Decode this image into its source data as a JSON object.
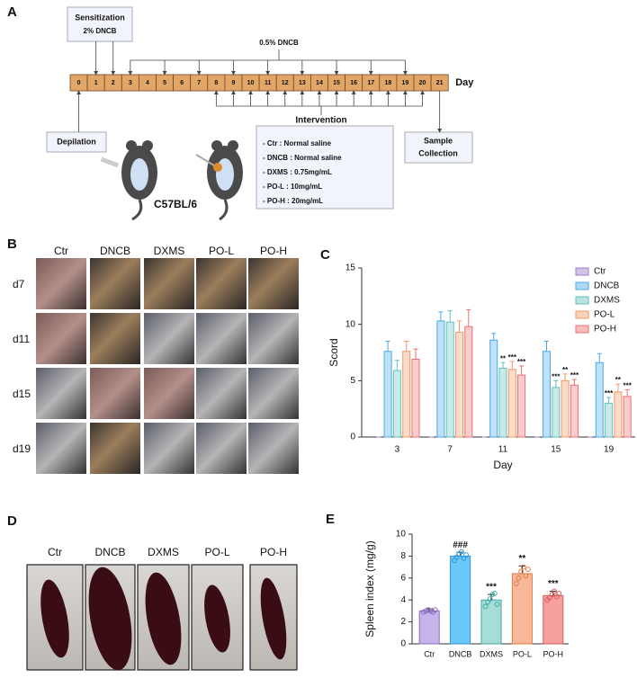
{
  "panel_labels": [
    "A",
    "B",
    "C",
    "D",
    "E"
  ],
  "timeline": {
    "sensitization": "Sensitization",
    "sensitization_dose": "2% DNCB",
    "challenge_dose": "0.5% DNCB",
    "days": [
      0,
      1,
      2,
      3,
      4,
      5,
      6,
      7,
      8,
      9,
      10,
      11,
      12,
      13,
      14,
      15,
      16,
      17,
      18,
      19,
      20,
      21
    ],
    "day_label": "Day",
    "depilation": "Depilation",
    "sample_collection": [
      "Sample",
      "Collection"
    ],
    "intervention_title": "Intervention",
    "intervention_items": [
      "- Ctr  : Normal saline",
      "- DNCB  :  Normal saline",
      "- DXMS : 0.75mg/mL",
      "- PO-L : 10mg/mL",
      "- PO-H : 20mg/mL"
    ],
    "strain": "C57BL/6"
  },
  "photo_grid": {
    "columns": [
      "Ctr",
      "DNCB",
      "DXMS",
      "PO-L",
      "PO-H"
    ],
    "rows": [
      "d7",
      "d11",
      "d15",
      "d19"
    ]
  },
  "spleen_photos": {
    "labels": [
      "Ctr",
      "DNCB",
      "DXMS",
      "PO-L",
      "PO-H"
    ]
  },
  "chart_data": [
    {
      "type": "bar",
      "xlabel": "Day",
      "ylabel": "Scord",
      "categories": [
        "3",
        "7",
        "11",
        "15",
        "19"
      ],
      "ylim": [
        0,
        15
      ],
      "yticks": [
        0,
        5,
        10,
        15
      ],
      "series": [
        {
          "name": "Ctr",
          "color": "#9a7cc9",
          "values": [
            0,
            0,
            0,
            0,
            0
          ],
          "errors": [
            0,
            0,
            0,
            0,
            0
          ],
          "significance": [
            null,
            null,
            null,
            null,
            null
          ]
        },
        {
          "name": "DNCB",
          "color": "#4aa8ec",
          "values": [
            7.6,
            10.3,
            8.6,
            7.6,
            6.6
          ],
          "errors": [
            0.9,
            0.8,
            0.6,
            0.9,
            0.8
          ],
          "significance": [
            null,
            null,
            null,
            null,
            null
          ]
        },
        {
          "name": "DXMS",
          "color": "#62c2bd",
          "values": [
            5.9,
            10.2,
            6.1,
            4.4,
            3.0
          ],
          "errors": [
            0.9,
            1.0,
            0.5,
            0.6,
            0.5
          ],
          "significance": [
            null,
            null,
            "**",
            "***",
            "***"
          ]
        },
        {
          "name": "PO-L",
          "color": "#f39a66",
          "values": [
            7.6,
            9.3,
            6.0,
            5.0,
            4.0
          ],
          "errors": [
            0.9,
            1.0,
            0.7,
            0.6,
            0.7
          ],
          "significance": [
            null,
            null,
            "***",
            "**",
            "**"
          ]
        },
        {
          "name": "PO-H",
          "color": "#ee6f6f",
          "values": [
            6.9,
            9.8,
            5.5,
            4.6,
            3.6
          ],
          "errors": [
            0.9,
            1.5,
            0.8,
            0.5,
            0.6
          ],
          "significance": [
            null,
            null,
            "***",
            "***",
            "***"
          ]
        }
      ],
      "legend": "upper right"
    },
    {
      "type": "bar",
      "ylabel": "Spleen index (mg/g)",
      "categories": [
        "Ctr",
        "DNCB",
        "DXMS",
        "PO-L",
        "PO-H"
      ],
      "ylim": [
        0,
        10
      ],
      "yticks": [
        0,
        2,
        4,
        6,
        8,
        10
      ],
      "values": [
        3.0,
        8.0,
        4.0,
        6.4,
        4.4
      ],
      "errors": [
        0.2,
        0.35,
        0.5,
        0.7,
        0.4
      ],
      "colors": [
        "#c6b3ea",
        "#6bc7f7",
        "#a6ddd8",
        "#f9b89a",
        "#f6a0a0"
      ],
      "point_colors": [
        "#8a6cc0",
        "#2f95d8",
        "#45a9a3",
        "#e07a45",
        "#e05757"
      ],
      "significance": [
        null,
        "###",
        "***",
        "**",
        "***"
      ],
      "points": [
        [
          2.9,
          3.0,
          3.1,
          3.0,
          2.9,
          3.1
        ],
        [
          7.6,
          7.9,
          8.2,
          8.4,
          7.8,
          8.1
        ],
        [
          3.4,
          3.8,
          4.1,
          4.5,
          4.6,
          3.6
        ],
        [
          5.5,
          6.0,
          6.6,
          7.0,
          6.2,
          6.8
        ],
        [
          4.0,
          4.2,
          4.5,
          4.8,
          4.3,
          4.6
        ]
      ]
    }
  ]
}
